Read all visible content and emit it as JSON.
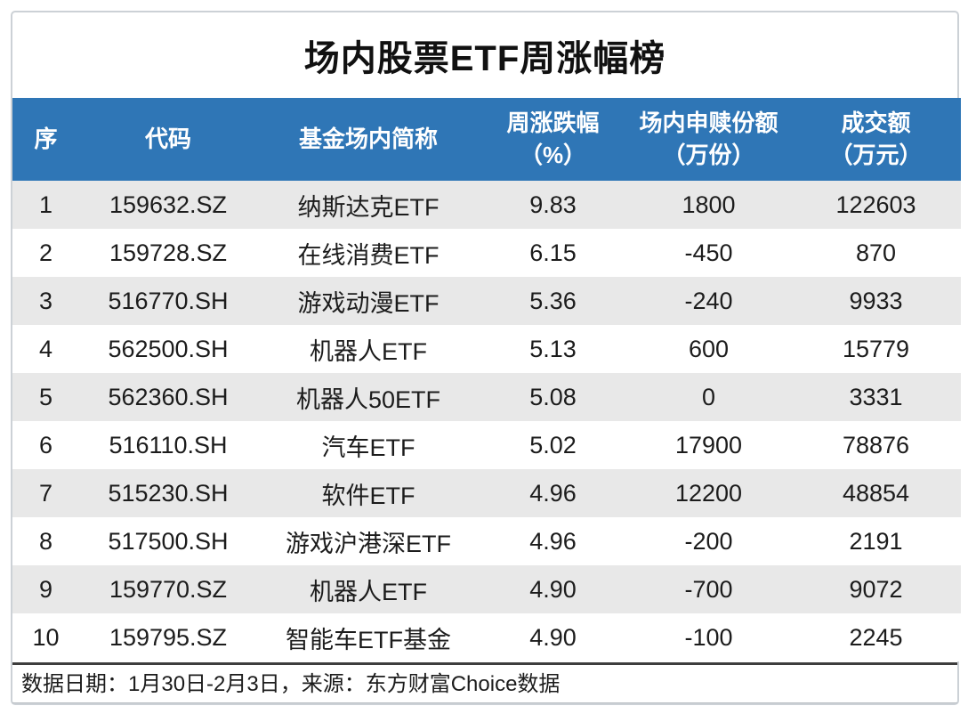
{
  "title": "场内股票ETF周涨幅榜",
  "colors": {
    "header_bg": "#2f76b6",
    "header_text": "#ffffff",
    "row_stripe": "#e8e8e8",
    "row_plain": "#ffffff",
    "card_border": "#ccd1d6",
    "footer_border": "#3d3d3d",
    "text": "#1c1c1c"
  },
  "table": {
    "columns": [
      {
        "line1": "序",
        "line2": ""
      },
      {
        "line1": "代码",
        "line2": ""
      },
      {
        "line1": "基金场内简称",
        "line2": ""
      },
      {
        "line1": "周涨跌幅",
        "line2": "（%）"
      },
      {
        "line1": "场内申赎份额",
        "line2": "（万份）"
      },
      {
        "line1": "成交额",
        "line2": "（万元）"
      }
    ],
    "rows": [
      {
        "seq": "1",
        "code": "159632.SZ",
        "name": "纳斯达克ETF",
        "pct": "9.83",
        "shares": "1800",
        "turnover": "122603"
      },
      {
        "seq": "2",
        "code": "159728.SZ",
        "name": "在线消费ETF",
        "pct": "6.15",
        "shares": "-450",
        "turnover": "870"
      },
      {
        "seq": "3",
        "code": "516770.SH",
        "name": "游戏动漫ETF",
        "pct": "5.36",
        "shares": "-240",
        "turnover": "9933"
      },
      {
        "seq": "4",
        "code": "562500.SH",
        "name": "机器人ETF",
        "pct": "5.13",
        "shares": "600",
        "turnover": "15779"
      },
      {
        "seq": "5",
        "code": "562360.SH",
        "name": "机器人50ETF",
        "pct": "5.08",
        "shares": "0",
        "turnover": "3331"
      },
      {
        "seq": "6",
        "code": "516110.SH",
        "name": "汽车ETF",
        "pct": "5.02",
        "shares": "17900",
        "turnover": "78876"
      },
      {
        "seq": "7",
        "code": "515230.SH",
        "name": "软件ETF",
        "pct": "4.96",
        "shares": "12200",
        "turnover": "48854"
      },
      {
        "seq": "8",
        "code": "517500.SH",
        "name": "游戏沪港深ETF",
        "pct": "4.96",
        "shares": "-200",
        "turnover": "2191"
      },
      {
        "seq": "9",
        "code": "159770.SZ",
        "name": "机器人ETF",
        "pct": "4.90",
        "shares": "-700",
        "turnover": "9072"
      },
      {
        "seq": "10",
        "code": "159795.SZ",
        "name": "智能车ETF基金",
        "pct": "4.90",
        "shares": "-100",
        "turnover": "2245"
      }
    ]
  },
  "footer": {
    "note": "数据日期：1月30日-2月3日，来源：东方财富Choice数据"
  },
  "chart_data": {
    "type": "table",
    "title": "场内股票ETF周涨幅榜",
    "columns": [
      "序",
      "代码",
      "基金场内简称",
      "周涨跌幅（%）",
      "场内申赎份额（万份）",
      "成交额（万元）"
    ],
    "rows": [
      [
        1,
        "159632.SZ",
        "纳斯达克ETF",
        9.83,
        1800,
        122603
      ],
      [
        2,
        "159728.SZ",
        "在线消费ETF",
        6.15,
        -450,
        870
      ],
      [
        3,
        "516770.SH",
        "游戏动漫ETF",
        5.36,
        -240,
        9933
      ],
      [
        4,
        "562500.SH",
        "机器人ETF",
        5.13,
        600,
        15779
      ],
      [
        5,
        "562360.SH",
        "机器人50ETF",
        5.08,
        0,
        3331
      ],
      [
        6,
        "516110.SH",
        "汽车ETF",
        5.02,
        17900,
        78876
      ],
      [
        7,
        "515230.SH",
        "软件ETF",
        4.96,
        12200,
        48854
      ],
      [
        8,
        "517500.SH",
        "游戏沪港深ETF",
        4.96,
        -200,
        2191
      ],
      [
        9,
        "159770.SZ",
        "机器人ETF",
        4.9,
        -700,
        9072
      ],
      [
        10,
        "159795.SZ",
        "智能车ETF基金",
        4.9,
        -100,
        2245
      ]
    ],
    "source_note": "数据日期：1月30日-2月3日，来源：东方财富Choice数据"
  }
}
